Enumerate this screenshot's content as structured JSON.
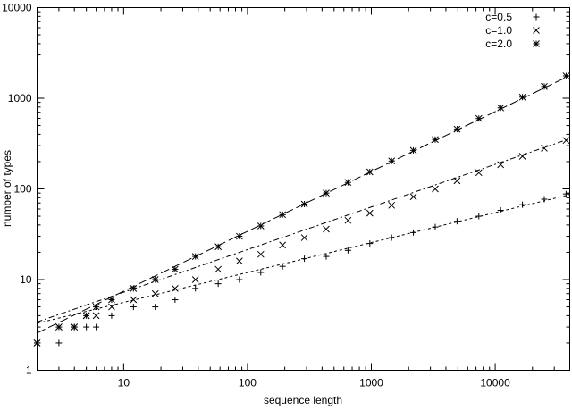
{
  "chart_data": {
    "type": "scatter",
    "xlabel": "sequence length",
    "ylabel": "number of types",
    "x_scale": "log",
    "y_scale": "log",
    "xlim": [
      2,
      40000
    ],
    "ylim": [
      1,
      10000
    ],
    "x_ticks": [
      {
        "value": 10,
        "label": "10"
      },
      {
        "value": 100,
        "label": "100"
      },
      {
        "value": 1000,
        "label": "1000"
      },
      {
        "value": 10000,
        "label": "10000"
      }
    ],
    "y_ticks": [
      {
        "value": 1,
        "label": "1"
      },
      {
        "value": 10,
        "label": "10"
      },
      {
        "value": 100,
        "label": "100"
      },
      {
        "value": 1000,
        "label": "1000"
      },
      {
        "value": 10000,
        "label": "10000"
      }
    ],
    "grid": false,
    "legend_position": "top-right",
    "series": [
      {
        "name": "c=0.5",
        "marker": "plus",
        "x": [
          2,
          3,
          4,
          5,
          6,
          8,
          12,
          18,
          26,
          38,
          58,
          86,
          128,
          192,
          288,
          432,
          648,
          972,
          1458,
          2186,
          3280,
          4920,
          7380,
          11070,
          16606,
          24909,
          37364
        ],
        "y": [
          2,
          2,
          3,
          3,
          3,
          4,
          5,
          5,
          6,
          8,
          9,
          10,
          12,
          14,
          17,
          18,
          21,
          25,
          29,
          33,
          38,
          44,
          50,
          58,
          67,
          77,
          88
        ],
        "fit": {
          "a": 2.62,
          "b": 0.33,
          "dash": "3,3"
        }
      },
      {
        "name": "c=1.0",
        "marker": "cross",
        "x": [
          2,
          3,
          4,
          5,
          6,
          8,
          12,
          18,
          26,
          38,
          58,
          86,
          128,
          192,
          288,
          432,
          648,
          972,
          1458,
          2186,
          3280,
          4920,
          7380,
          11070,
          16606,
          24909,
          37364
        ],
        "y": [
          2,
          3,
          3,
          4,
          4,
          5,
          6,
          7,
          8,
          10,
          13,
          16,
          19,
          24,
          29,
          36,
          45,
          54,
          66,
          82,
          100,
          123,
          151,
          185,
          229,
          281,
          343
        ],
        "fit": {
          "a": 2.46,
          "b": 0.47,
          "dash": "6,3,2,3"
        }
      },
      {
        "name": "c=2.0",
        "marker": "star",
        "x": [
          2,
          3,
          4,
          5,
          6,
          8,
          12,
          18,
          26,
          38,
          58,
          86,
          128,
          192,
          288,
          432,
          648,
          972,
          1458,
          2186,
          3280,
          4920,
          7380,
          11070,
          16606,
          24909,
          37364
        ],
        "y": [
          2,
          3,
          3,
          4,
          5,
          6,
          8,
          10,
          13,
          18,
          23,
          30,
          39,
          52,
          68,
          90,
          118,
          154,
          203,
          266,
          350,
          456,
          598,
          784,
          1029,
          1347,
          1764
        ],
        "fit": {
          "a": 1.63,
          "b": 0.66,
          "dash": "10,4"
        }
      }
    ]
  }
}
